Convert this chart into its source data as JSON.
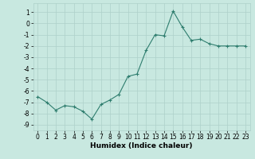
{
  "x": [
    0,
    1,
    2,
    3,
    4,
    5,
    6,
    7,
    8,
    9,
    10,
    11,
    12,
    13,
    14,
    15,
    16,
    17,
    18,
    19,
    20,
    21,
    22,
    23
  ],
  "y": [
    -6.5,
    -7.0,
    -7.7,
    -7.3,
    -7.4,
    -7.8,
    -8.5,
    -7.2,
    -6.8,
    -6.3,
    -4.7,
    -4.5,
    -2.4,
    -1.0,
    -1.1,
    1.1,
    -0.3,
    -1.5,
    -1.4,
    -1.8,
    -2.0,
    -2.0,
    -2.0,
    -2.0
  ],
  "xlabel": "Humidex (Indice chaleur)",
  "ylim": [
    -9.5,
    1.8
  ],
  "xlim": [
    -0.5,
    23.5
  ],
  "yticks": [
    1,
    0,
    -1,
    -2,
    -3,
    -4,
    -5,
    -6,
    -7,
    -8,
    -9
  ],
  "xticks": [
    0,
    1,
    2,
    3,
    4,
    5,
    6,
    7,
    8,
    9,
    10,
    11,
    12,
    13,
    14,
    15,
    16,
    17,
    18,
    19,
    20,
    21,
    22,
    23
  ],
  "line_color": "#2e7d6e",
  "marker": "+",
  "bg_color": "#c8e8e0",
  "grid_color": "#aed0ca",
  "tick_label_fontsize": 5.5,
  "xlabel_fontsize": 6.5
}
